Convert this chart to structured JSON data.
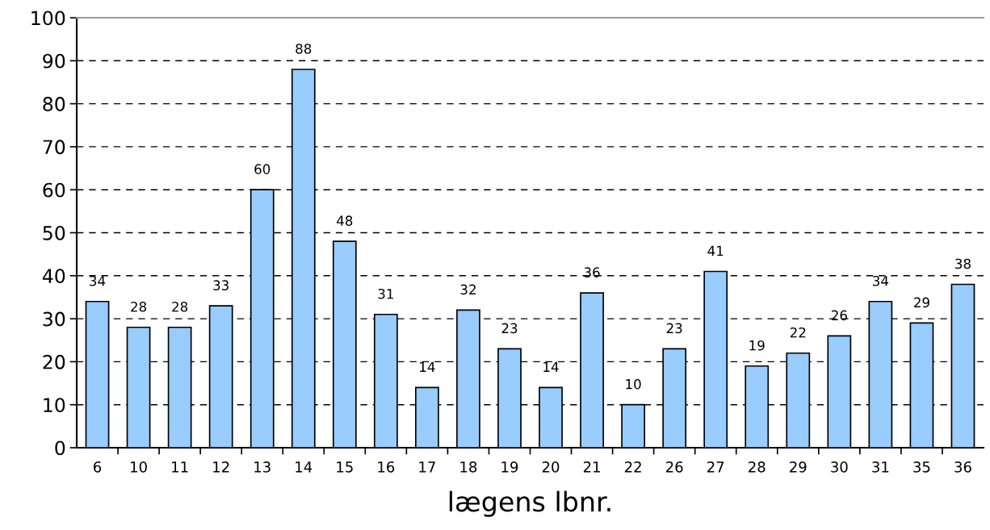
{
  "chart_data": {
    "type": "bar",
    "xlabel": "lægens lbnr.",
    "categories": [
      "6",
      "10",
      "11",
      "12",
      "13",
      "14",
      "15",
      "16",
      "17",
      "18",
      "19",
      "20",
      "21",
      "22",
      "26",
      "27",
      "28",
      "29",
      "30",
      "31",
      "35",
      "36"
    ],
    "values": [
      34,
      28,
      28,
      33,
      60,
      88,
      48,
      31,
      14,
      32,
      23,
      14,
      36,
      10,
      23,
      41,
      19,
      22,
      26,
      34,
      29,
      38
    ],
    "color": "#99ccff",
    "ylim": [
      0,
      100
    ],
    "yticks": [
      0,
      10,
      20,
      30,
      40,
      50,
      60,
      70,
      80,
      90,
      100
    ],
    "grid": "y",
    "data_labels": true
  }
}
